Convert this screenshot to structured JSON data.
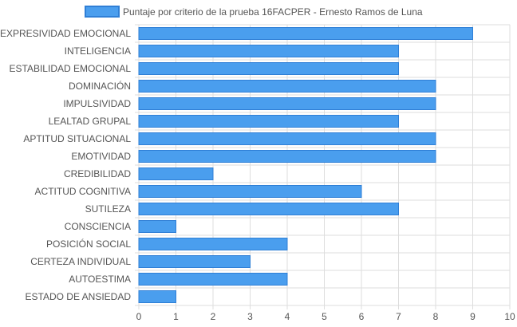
{
  "chart_data": {
    "type": "bar",
    "orientation": "horizontal",
    "categories": [
      "EXPRESIVIDAD EMOCIONAL",
      "INTELIGENCIA",
      "ESTABILIDAD EMOCIONAL",
      "DOMINACIÓN",
      "IMPULSIVIDAD",
      "LEALTAD GRUPAL",
      "APTITUD SITUACIONAL",
      "EMOTIVIDAD",
      "CREDIBILIDAD",
      "ACTITUD COGNITIVA",
      "SUTILEZA",
      "CONSCIENCIA",
      "POSICIÓN SOCIAL",
      "CERTEZA INDIVIDUAL",
      "AUTOESTIMA",
      "ESTADO DE ANSIEDAD"
    ],
    "series": [
      {
        "name": "Puntaje por criterio de la prueba 16FACPER - Ernesto Ramos de Luna",
        "values": [
          9,
          7,
          7,
          8,
          8,
          7,
          8,
          8,
          2,
          6,
          7,
          1,
          4,
          3,
          4,
          1
        ]
      }
    ],
    "xlim": [
      0,
      10
    ],
    "xticks": [
      "0",
      "1",
      "2",
      "3",
      "4",
      "5",
      "6",
      "7",
      "8",
      "9",
      "10"
    ],
    "grid": true,
    "legend_position": "top",
    "colors": {
      "bar_fill": "#4a9eee",
      "bar_stroke": "#2f7fd6",
      "grid": "#dddddd",
      "axis_text": "#555555"
    }
  }
}
